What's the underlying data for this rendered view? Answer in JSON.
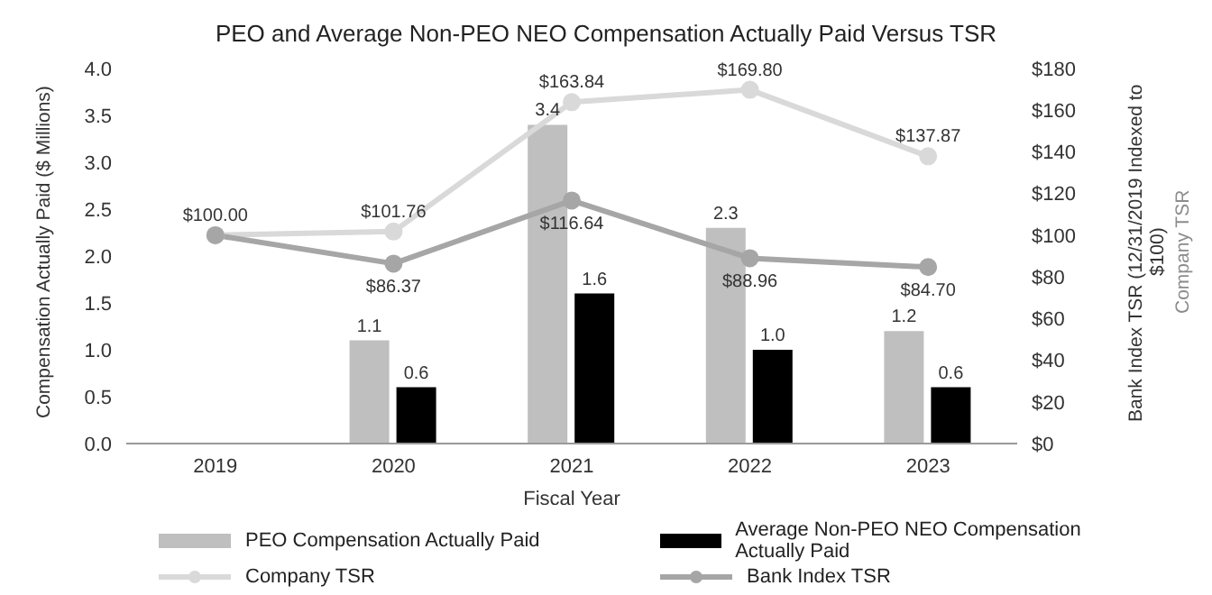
{
  "chart_data": {
    "type": "bar",
    "title": "PEO and Average Non-PEO NEO Compensation Actually Paid Versus TSR",
    "xlabel": "Fiscal Year",
    "ylabel": "Compensation Actually Paid ($ Millions)",
    "y2label": "Bank Index TSR (12/31/2019 Indexed to $100)",
    "annotations": [
      "Company TSR"
    ],
    "categories": [
      "2019",
      "2020",
      "2021",
      "2022",
      "2023"
    ],
    "series": [
      {
        "name": "PEO Compensation Actually Paid",
        "color": "#bfbfbf",
        "values": [
          null,
          1.1,
          3.4,
          2.3,
          1.2
        ],
        "value_labels": [
          null,
          "1.1",
          "3.4",
          "2.3",
          "1.2"
        ]
      },
      {
        "name": "Average Non-PEO NEO Compensation Actually Paid",
        "color": "#000000",
        "values": [
          null,
          0.6,
          1.6,
          1.0,
          0.6
        ],
        "value_labels": [
          null,
          "0.6",
          "1.6",
          "1.0",
          "0.6"
        ]
      },
      {
        "name": "Company TSR",
        "type": "line",
        "axis": "y2",
        "color": "#d9d9d9",
        "values": [
          100,
          101.76,
          163.84,
          169.8,
          137.87
        ],
        "value_labels": [
          "$100.00",
          "$101.76",
          "$163.84",
          "$169.80",
          "$137.87"
        ]
      },
      {
        "name": "Bank Index TSR",
        "type": "line",
        "axis": "y2",
        "color": "#a6a6a6",
        "values": [
          100,
          86.37,
          116.64,
          88.96,
          84.7
        ],
        "value_labels": [
          null,
          "$86.37",
          "$116.64",
          "$88.96",
          "$84.70"
        ]
      }
    ],
    "ylim": [
      0,
      4
    ],
    "yticks": [
      {
        "value": 0,
        "label": "0.0"
      },
      {
        "value": 0.5,
        "label": "0.5"
      },
      {
        "value": 1,
        "label": "1.0"
      },
      {
        "value": 1.5,
        "label": "1.5"
      },
      {
        "value": 2,
        "label": "2.0"
      },
      {
        "value": 2.5,
        "label": "2.5"
      },
      {
        "value": 3,
        "label": "3.0"
      },
      {
        "value": 3.5,
        "label": "3.5"
      },
      {
        "value": 4,
        "label": "4.0"
      }
    ],
    "y2lim": [
      0,
      180
    ],
    "y2ticks": [
      {
        "value": 0,
        "label": "$0"
      },
      {
        "value": 20,
        "label": "$20"
      },
      {
        "value": 40,
        "label": "$40"
      },
      {
        "value": 60,
        "label": "$60"
      },
      {
        "value": 80,
        "label": "$80"
      },
      {
        "value": 100,
        "label": "$100"
      },
      {
        "value": 120,
        "label": "$120"
      },
      {
        "value": 140,
        "label": "$140"
      },
      {
        "value": 160,
        "label": "$160"
      },
      {
        "value": 180,
        "label": "$180"
      }
    ],
    "marker": "circle",
    "legend": "bottom",
    "grid": false
  }
}
